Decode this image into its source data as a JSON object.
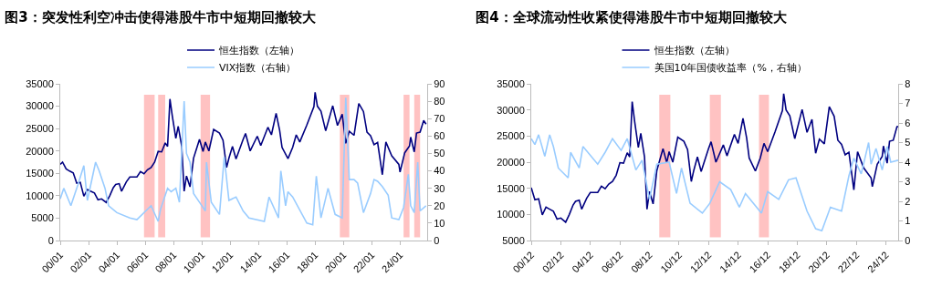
{
  "chart_data": [
    {
      "type": "line",
      "title": "图3：突发性利空冲击使得港股牛市中短期回撤较大",
      "legend": "top",
      "grid": false,
      "xlim": [
        "2000-01",
        "2025-12"
      ],
      "xticks": [
        {
          "value": "2000-01",
          "label": "00/01"
        },
        {
          "value": "2002-01",
          "label": "02/01"
        },
        {
          "value": "2004-01",
          "label": "04/01"
        },
        {
          "value": "2006-01",
          "label": "06/01"
        },
        {
          "value": "2008-01",
          "label": "08/01"
        },
        {
          "value": "2010-01",
          "label": "10/01"
        },
        {
          "value": "2012-01",
          "label": "12/01"
        },
        {
          "value": "2014-01",
          "label": "14/01"
        },
        {
          "value": "2016-01",
          "label": "16/01"
        },
        {
          "value": "2018-01",
          "label": "18/01"
        },
        {
          "value": "2020-01",
          "label": "20/01"
        },
        {
          "value": "2022-01",
          "label": "22/01"
        },
        {
          "value": "2024-01",
          "label": "24/01"
        }
      ],
      "ylim": [
        0,
        35000
      ],
      "yticks": [
        0,
        5000,
        10000,
        15000,
        20000,
        25000,
        30000,
        35000
      ],
      "y2lim": [
        0,
        90
      ],
      "y2ticks": [
        0,
        10,
        20,
        30,
        40,
        50,
        60,
        70,
        80,
        90
      ],
      "series": [
        {
          "name": "VIX指数（右轴）",
          "color": "#99ccff",
          "axis": "y2",
          "x": [
            "2000-01",
            "2000-04",
            "2000-10",
            "2001-04",
            "2001-09",
            "2001-12",
            "2002-07",
            "2002-10",
            "2003-03",
            "2003-06",
            "2004-01",
            "2004-12",
            "2005-06",
            "2006-06",
            "2006-12",
            "2007-02",
            "2007-08",
            "2007-11",
            "2008-03",
            "2008-06",
            "2008-10",
            "2008-12",
            "2009-03",
            "2009-06",
            "2009-12",
            "2010-04",
            "2010-05",
            "2010-09",
            "2011-04",
            "2011-08",
            "2011-12",
            "2012-06",
            "2012-12",
            "2013-05",
            "2014-06",
            "2014-10",
            "2015-06",
            "2015-08",
            "2015-12",
            "2016-02",
            "2016-06",
            "2017-06",
            "2017-11",
            "2018-02",
            "2018-06",
            "2018-12",
            "2019-06",
            "2019-12",
            "2020-03",
            "2020-06",
            "2020-10",
            "2021-01",
            "2021-06",
            "2021-12",
            "2022-03",
            "2022-06",
            "2022-10",
            "2023-03",
            "2023-06",
            "2023-12",
            "2024-04",
            "2024-08",
            "2024-10",
            "2025-01",
            "2025-04",
            "2025-06",
            "2025-11"
          ],
          "values": [
            24,
            30,
            20,
            32,
            43,
            23,
            45,
            40,
            30,
            20,
            16,
            13,
            12,
            20,
            11,
            18,
            30,
            28,
            30,
            22,
            80,
            50,
            45,
            27,
            21,
            17,
            45,
            22,
            15,
            48,
            23,
            25,
            17,
            13,
            11,
            25,
            13,
            40,
            20,
            28,
            25,
            10,
            9,
            37,
            13,
            30,
            15,
            13,
            82,
            35,
            35,
            33,
            16,
            27,
            35,
            34,
            31,
            26,
            13,
            12,
            19,
            38,
            20,
            16,
            45,
            17,
            20
          ]
        },
        {
          "name": "恒生指数（左轴）",
          "color": "#000080",
          "x": [
            "2000-01",
            "2000-03",
            "2000-06",
            "2000-09",
            "2000-12",
            "2001-03",
            "2001-06",
            "2001-09",
            "2001-12",
            "2002-03",
            "2002-06",
            "2002-09",
            "2002-12",
            "2003-04",
            "2003-07",
            "2003-10",
            "2003-12",
            "2004-03",
            "2004-05",
            "2004-09",
            "2004-12",
            "2005-06",
            "2005-09",
            "2005-12",
            "2006-03",
            "2006-06",
            "2006-09",
            "2006-12",
            "2007-03",
            "2007-06",
            "2007-08",
            "2007-10",
            "2007-12",
            "2008-03",
            "2008-05",
            "2008-08",
            "2008-10",
            "2008-12",
            "2009-03",
            "2009-06",
            "2009-09",
            "2009-11",
            "2010-02",
            "2010-04",
            "2010-07",
            "2010-11",
            "2011-04",
            "2011-07",
            "2011-10",
            "2011-12",
            "2012-03",
            "2012-06",
            "2012-12",
            "2013-02",
            "2013-06",
            "2013-12",
            "2014-03",
            "2014-09",
            "2014-12",
            "2015-04",
            "2015-07",
            "2015-09",
            "2016-02",
            "2016-06",
            "2016-09",
            "2016-12",
            "2017-06",
            "2017-12",
            "2018-01",
            "2018-03",
            "2018-06",
            "2018-10",
            "2019-04",
            "2019-08",
            "2019-12",
            "2020-03",
            "2020-06",
            "2020-10",
            "2021-02",
            "2021-06",
            "2021-09",
            "2021-12",
            "2022-03",
            "2022-06",
            "2022-10",
            "2023-01",
            "2023-06",
            "2023-12",
            "2024-01",
            "2024-05",
            "2024-09",
            "2024-10",
            "2025-01",
            "2025-03",
            "2025-06",
            "2025-09",
            "2025-11"
          ],
          "values": [
            17000,
            17500,
            16000,
            15500,
            15100,
            12800,
            13000,
            9900,
            11400,
            11000,
            10600,
            9100,
            9300,
            8500,
            10000,
            11800,
            12500,
            12700,
            11000,
            13100,
            14200,
            14200,
            15400,
            14900,
            15800,
            16300,
            17500,
            19900,
            19800,
            21800,
            21000,
            31600,
            27800,
            22800,
            25500,
            21000,
            11000,
            14400,
            12000,
            18400,
            20900,
            22600,
            19900,
            22000,
            20000,
            24800,
            24000,
            22400,
            16300,
            18400,
            21000,
            18200,
            22600,
            23900,
            20000,
            23300,
            21200,
            25300,
            23600,
            28400,
            24600,
            20800,
            18300,
            20800,
            23600,
            22000,
            25800,
            29900,
            33100,
            30000,
            28900,
            24500,
            30100,
            25700,
            28200,
            21700,
            24400,
            23500,
            30600,
            28800,
            24200,
            23400,
            21400,
            21900,
            14700,
            22000,
            18900,
            17000,
            15300,
            19600,
            21100,
            23100,
            19800,
            24000,
            24200,
            26800,
            26000
          ]
        }
      ],
      "bands": [
        {
          "axis": "x",
          "from": "2005-12",
          "to": "2006-09",
          "color": "#ffb3b3"
        },
        {
          "axis": "x",
          "from": "2006-12",
          "to": "2007-06",
          "color": "#ffb3b3"
        },
        {
          "axis": "x",
          "from": "2009-12",
          "to": "2010-08",
          "color": "#ffb3b3"
        },
        {
          "axis": "x",
          "from": "2019-10",
          "to": "2020-06",
          "color": "#ffb3b3"
        },
        {
          "axis": "x",
          "from": "2024-04",
          "to": "2024-09",
          "color": "#ffb3b3"
        },
        {
          "axis": "x",
          "from": "2025-01",
          "to": "2025-06",
          "color": "#ffb3b3"
        }
      ]
    },
    {
      "type": "line",
      "title": "图4：全球流动性收紧使得港股牛市中短期回撤较大",
      "legend": "top",
      "grid": false,
      "xlim": [
        "2000-12",
        "2025-10"
      ],
      "xticks": [
        {
          "value": "2000-12",
          "label": "00/12"
        },
        {
          "value": "2002-12",
          "label": "02/12"
        },
        {
          "value": "2004-12",
          "label": "04/12"
        },
        {
          "value": "2006-12",
          "label": "06/12"
        },
        {
          "value": "2008-12",
          "label": "08/12"
        },
        {
          "value": "2010-12",
          "label": "10/12"
        },
        {
          "value": "2012-12",
          "label": "12/12"
        },
        {
          "value": "2014-12",
          "label": "14/12"
        },
        {
          "value": "2016-12",
          "label": "16/12"
        },
        {
          "value": "2018-12",
          "label": "18/12"
        },
        {
          "value": "2020-12",
          "label": "20/12"
        },
        {
          "value": "2022-12",
          "label": "22/12"
        },
        {
          "value": "2024-12",
          "label": "24/12"
        }
      ],
      "ylim": [
        5000,
        35000
      ],
      "yticks": [
        5000,
        10000,
        15000,
        20000,
        25000,
        30000,
        35000
      ],
      "y2lim": [
        0,
        8
      ],
      "y2ticks": [
        0,
        1,
        2,
        3,
        4,
        5,
        6,
        7,
        8
      ],
      "series": [
        {
          "name": "美国10年国债收益率（%，右轴）",
          "color": "#99ccff",
          "axis": "y2",
          "x": [
            "2000-12",
            "2001-03",
            "2001-06",
            "2001-11",
            "2002-03",
            "2002-06",
            "2002-10",
            "2003-06",
            "2003-08",
            "2004-03",
            "2004-06",
            "2005-06",
            "2005-12",
            "2006-06",
            "2007-01",
            "2007-06",
            "2008-01",
            "2008-06",
            "2008-12",
            "2009-06",
            "2010-04",
            "2010-10",
            "2011-02",
            "2011-09",
            "2012-07",
            "2013-01",
            "2013-09",
            "2014-06",
            "2015-01",
            "2015-06",
            "2016-07",
            "2016-12",
            "2017-09",
            "2018-05",
            "2018-11",
            "2019-08",
            "2020-03",
            "2020-08",
            "2021-03",
            "2021-12",
            "2022-06",
            "2022-10",
            "2023-04",
            "2023-10",
            "2023-12",
            "2024-04",
            "2024-09",
            "2025-01",
            "2025-04",
            "2025-10"
          ],
          "values": [
            5.2,
            4.9,
            5.4,
            4.3,
            5.4,
            4.8,
            3.7,
            3.2,
            4.5,
            3.7,
            4.8,
            3.9,
            4.5,
            5.2,
            4.6,
            5.2,
            3.6,
            4.1,
            2.1,
            3.9,
            4.0,
            2.4,
            3.7,
            1.9,
            1.4,
            1.9,
            3.0,
            2.6,
            1.7,
            2.4,
            1.4,
            2.5,
            2.1,
            3.1,
            3.2,
            1.5,
            0.6,
            0.5,
            1.7,
            1.5,
            3.3,
            4.2,
            3.4,
            5.0,
            3.9,
            4.7,
            3.6,
            4.8,
            4.0,
            4.1
          ]
        },
        {
          "name": "恒生指数（左轴）",
          "color": "#000080",
          "x": [
            "2000-12",
            "2001-03",
            "2001-06",
            "2001-09",
            "2001-12",
            "2002-03",
            "2002-06",
            "2002-09",
            "2002-12",
            "2003-04",
            "2003-07",
            "2003-10",
            "2003-12",
            "2004-03",
            "2004-05",
            "2004-09",
            "2004-12",
            "2005-06",
            "2005-09",
            "2005-12",
            "2006-03",
            "2006-06",
            "2006-09",
            "2006-12",
            "2007-03",
            "2007-06",
            "2007-08",
            "2007-10",
            "2007-12",
            "2008-03",
            "2008-05",
            "2008-08",
            "2008-10",
            "2008-12",
            "2009-03",
            "2009-06",
            "2009-09",
            "2009-11",
            "2010-02",
            "2010-04",
            "2010-07",
            "2010-11",
            "2011-04",
            "2011-07",
            "2011-10",
            "2011-12",
            "2012-03",
            "2012-06",
            "2012-12",
            "2013-02",
            "2013-06",
            "2013-12",
            "2014-03",
            "2014-09",
            "2014-12",
            "2015-04",
            "2015-07",
            "2015-09",
            "2016-02",
            "2016-06",
            "2016-09",
            "2016-12",
            "2017-06",
            "2017-12",
            "2018-01",
            "2018-03",
            "2018-06",
            "2018-10",
            "2019-04",
            "2019-08",
            "2019-12",
            "2020-03",
            "2020-06",
            "2020-10",
            "2021-02",
            "2021-06",
            "2021-09",
            "2021-12",
            "2022-03",
            "2022-06",
            "2022-10",
            "2023-01",
            "2023-06",
            "2023-12",
            "2024-01",
            "2024-05",
            "2024-09",
            "2024-10",
            "2025-01",
            "2025-03",
            "2025-06",
            "2025-09",
            "2025-10"
          ],
          "values": [
            15100,
            12800,
            13000,
            9900,
            11400,
            11000,
            10600,
            9100,
            9300,
            8500,
            10000,
            11800,
            12500,
            12700,
            11000,
            13100,
            14200,
            14200,
            15400,
            14900,
            15800,
            16300,
            17500,
            19900,
            19800,
            21800,
            21000,
            31600,
            27800,
            22800,
            25500,
            21000,
            11000,
            14400,
            12000,
            18400,
            20900,
            22600,
            19900,
            22000,
            20000,
            24800,
            24000,
            22400,
            16300,
            18400,
            21000,
            18200,
            22600,
            23900,
            20000,
            23300,
            21200,
            25300,
            23600,
            28400,
            24600,
            20800,
            18300,
            20800,
            23600,
            22000,
            25800,
            29900,
            33100,
            30000,
            28900,
            24500,
            30100,
            25700,
            28200,
            21700,
            24400,
            23500,
            30600,
            28800,
            24200,
            23400,
            21400,
            21900,
            14700,
            22000,
            18900,
            17000,
            15300,
            19600,
            21100,
            23100,
            19800,
            24000,
            24200,
            26800,
            26800
          ]
        }
      ],
      "bands": [
        {
          "axis": "x",
          "from": "2009-08",
          "to": "2010-05",
          "color": "#ffb3b3"
        },
        {
          "axis": "x",
          "from": "2013-01",
          "to": "2013-10",
          "color": "#ffb3b3"
        },
        {
          "axis": "x",
          "from": "2016-05",
          "to": "2017-01",
          "color": "#ffb3b3"
        }
      ]
    }
  ]
}
